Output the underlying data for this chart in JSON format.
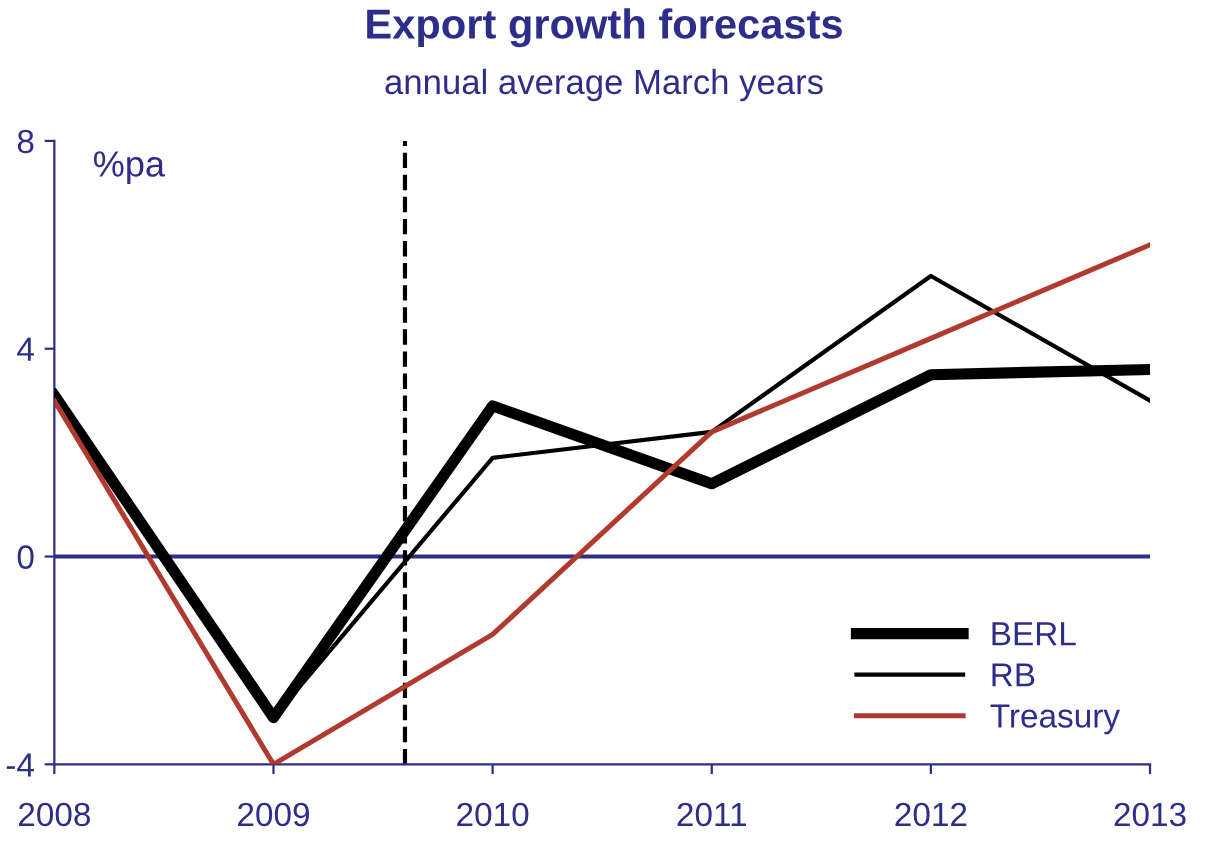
{
  "chart_data": {
    "type": "line",
    "title": "Export growth forecasts",
    "subtitle": "annual average March years",
    "ylabel": "%pa",
    "x": [
      2008,
      2009,
      2010,
      2011,
      2012,
      2013
    ],
    "series": [
      {
        "name": "BERL",
        "color": "#000000",
        "values": [
          3.1,
          -3.1,
          2.9,
          1.4,
          3.5,
          3.6
        ]
      },
      {
        "name": "RB",
        "color": "#000000",
        "values": [
          3.1,
          -3.1,
          1.9,
          2.4,
          5.4,
          3.0
        ]
      },
      {
        "name": "Treasury",
        "color": "#b03a2e",
        "values": [
          3.0,
          -4.0,
          -1.5,
          2.4,
          4.2,
          6.0
        ]
      }
    ],
    "xlim": [
      2008,
      2013
    ],
    "xticks": [
      2008,
      2009,
      2010,
      2011,
      2012,
      2013
    ],
    "ylim": [
      -4,
      8
    ],
    "yticks": [
      -4,
      0,
      4,
      8
    ],
    "ref_lines": [
      {
        "axis": "y",
        "value": 0,
        "color": "#2e2e8a",
        "line_style": "solid"
      },
      {
        "axis": "x",
        "value": 2009.6,
        "color": "#000000",
        "line_style": "dashed"
      }
    ],
    "grid": false,
    "legend": "bottom right",
    "marker": "none",
    "line_style": "solid"
  }
}
